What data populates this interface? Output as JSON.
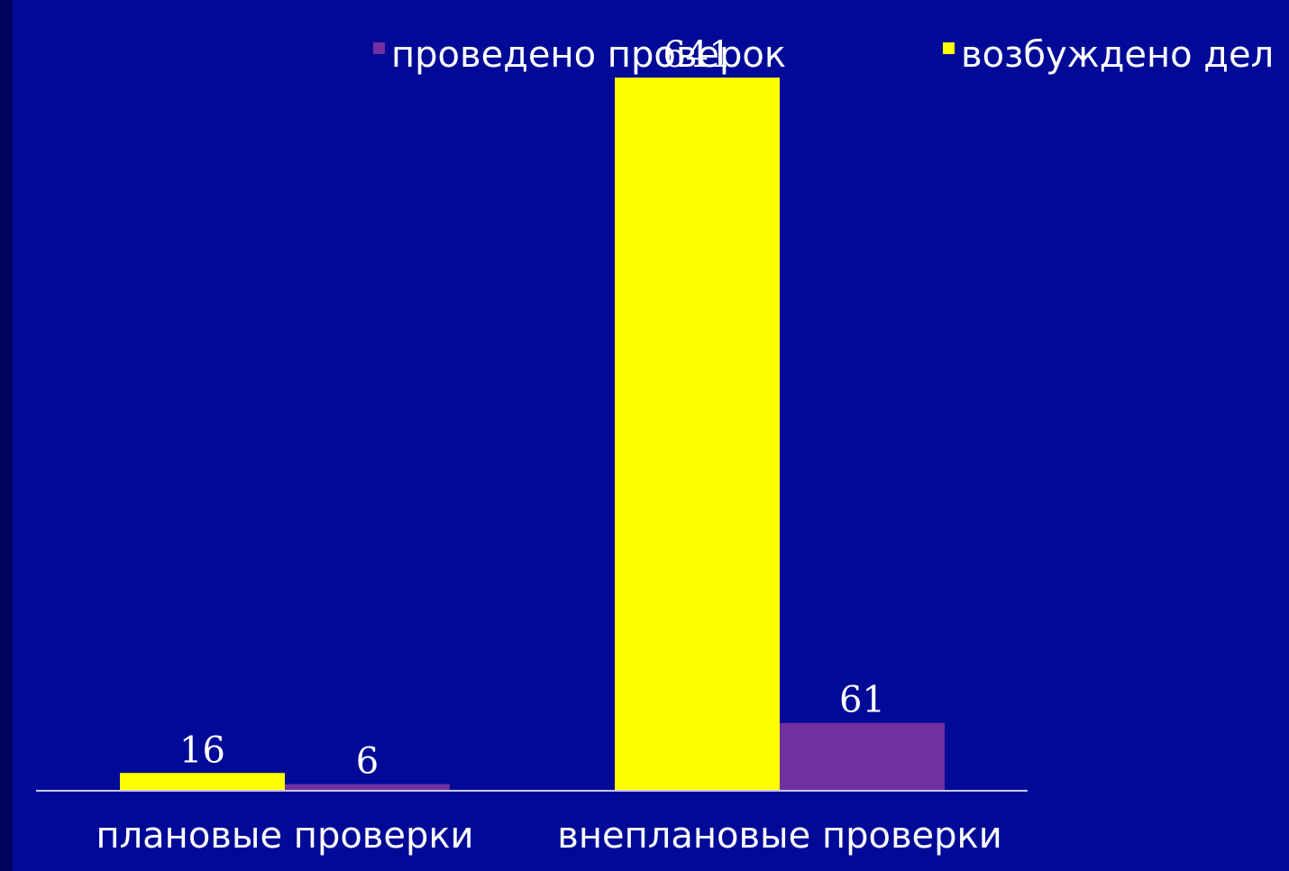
{
  "chart_data": {
    "type": "bar",
    "categories": [
      "плановые проверки",
      "внеплановые проверки"
    ],
    "series": [
      {
        "name": "возбуждено дел",
        "color": "#ffff00",
        "values": [
          16,
          641
        ]
      },
      {
        "name": "проведено проверок",
        "color": "#7030a0",
        "values": [
          6,
          61
        ]
      }
    ],
    "data_labels": true,
    "ylim": [
      0,
      641
    ],
    "grid": false,
    "legend": "top",
    "legend_order": [
      "проведено проверок",
      "возбуждено дел"
    ],
    "axis_color": "#c6c6ff"
  }
}
